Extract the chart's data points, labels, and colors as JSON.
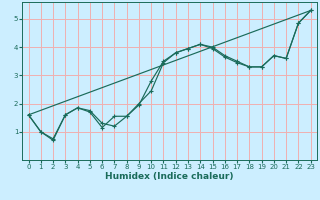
{
  "xlabel": "Humidex (Indice chaleur)",
  "bg_color": "#cceeff",
  "grid_color": "#f0b0b0",
  "line_color": "#1a6b5a",
  "xlim": [
    -0.5,
    23.5
  ],
  "ylim": [
    0,
    5.6
  ],
  "xticks": [
    0,
    1,
    2,
    3,
    4,
    5,
    6,
    7,
    8,
    9,
    10,
    11,
    12,
    13,
    14,
    15,
    16,
    17,
    18,
    19,
    20,
    21,
    22,
    23
  ],
  "yticks": [
    1,
    2,
    3,
    4,
    5
  ],
  "line1_x": [
    0,
    1,
    2,
    3,
    4,
    5,
    6,
    7,
    8,
    9,
    10,
    11,
    12,
    13,
    14,
    15,
    16,
    17,
    18,
    19,
    20,
    21,
    22,
    23
  ],
  "line1_y": [
    1.6,
    1.0,
    0.7,
    1.6,
    1.85,
    1.7,
    1.15,
    1.55,
    1.55,
    2.0,
    2.45,
    3.45,
    3.8,
    3.95,
    4.1,
    4.0,
    3.7,
    3.5,
    3.3,
    3.3,
    3.7,
    3.6,
    4.85,
    5.3
  ],
  "line2_x": [
    0,
    1,
    2,
    3,
    4,
    5,
    6,
    7,
    8,
    9,
    10,
    11,
    12,
    13,
    14,
    15,
    16,
    17,
    18,
    19,
    20,
    21,
    22,
    23
  ],
  "line2_y": [
    1.6,
    1.0,
    0.75,
    1.6,
    1.85,
    1.75,
    1.3,
    1.2,
    1.55,
    1.95,
    2.8,
    3.5,
    3.8,
    3.95,
    4.1,
    3.95,
    3.65,
    3.45,
    3.3,
    3.3,
    3.7,
    3.6,
    4.85,
    5.3
  ],
  "line3_x": [
    0,
    23
  ],
  "line3_y": [
    1.6,
    5.3
  ]
}
